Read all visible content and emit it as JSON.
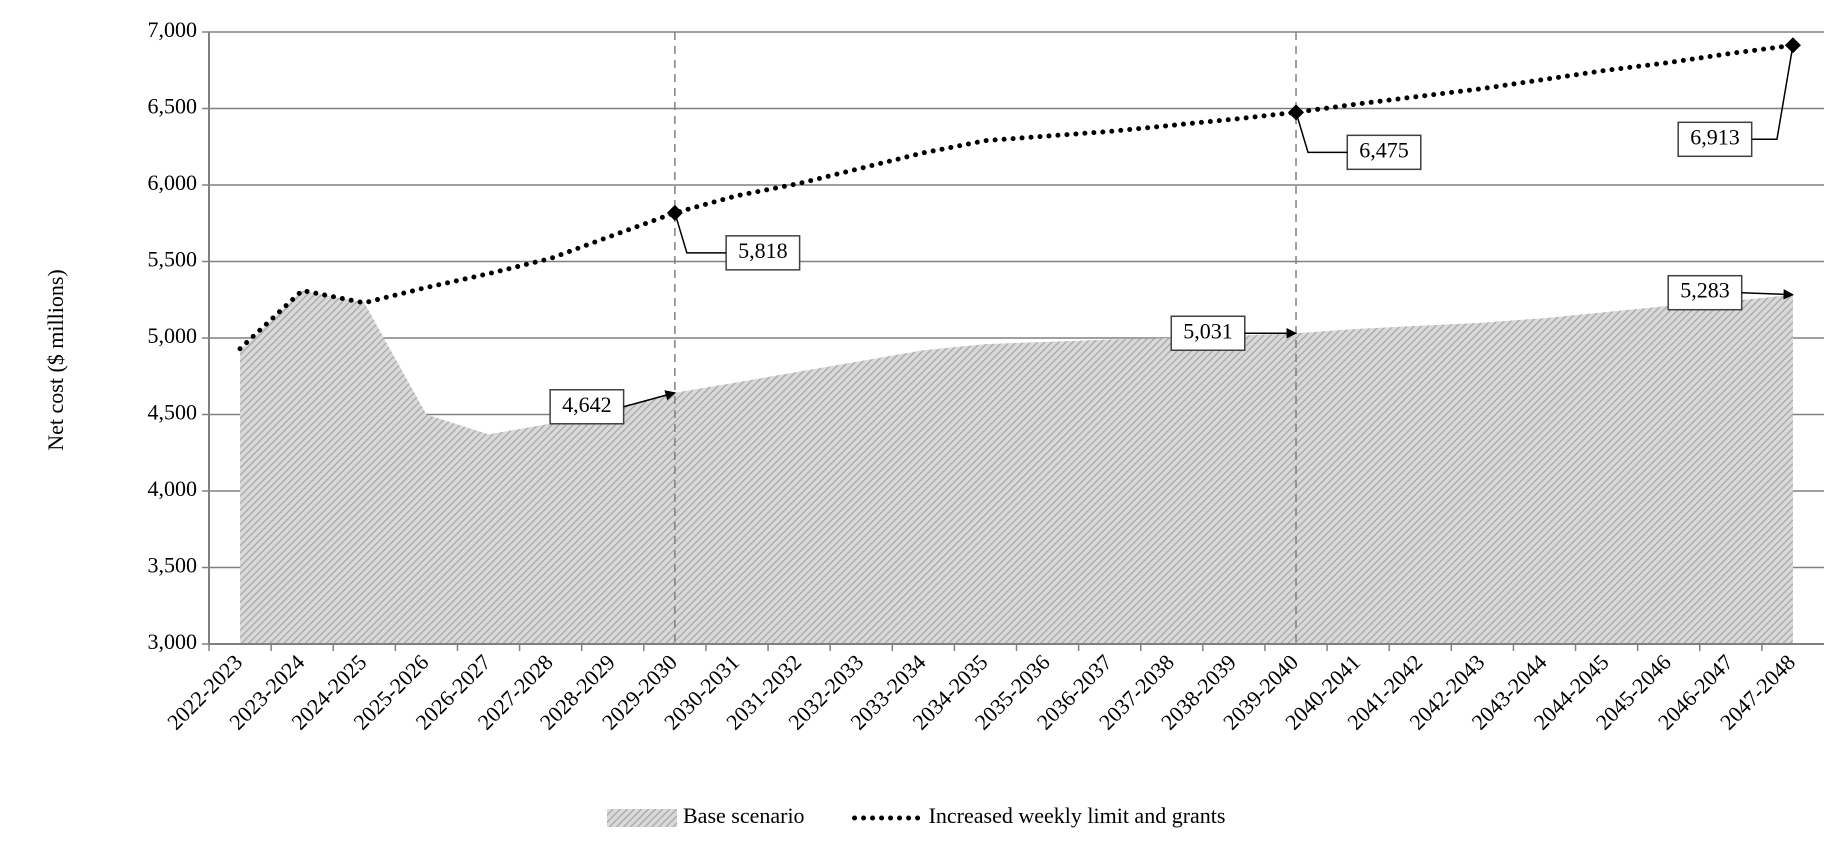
{
  "chart_data": {
    "type": "area_line",
    "y_label": "Net cost ($ millions)",
    "categories": [
      "2022-2023",
      "2023-2024",
      "2024-2025",
      "2025-2026",
      "2026-2027",
      "2027-2028",
      "2028-2029",
      "2029-2030",
      "2030-2031",
      "2031-2032",
      "2032-2033",
      "2033-2034",
      "2034-2035",
      "2035-2036",
      "2036-2037",
      "2037-2038",
      "2038-2039",
      "2039-2040",
      "2040-2041",
      "2041-2042",
      "2042-2043",
      "2043-2044",
      "2044-2045",
      "2045-2046",
      "2046-2047",
      "2047-2048"
    ],
    "series": [
      {
        "name": "Base scenario",
        "kind": "area",
        "color": "#a6a6a6",
        "values": [
          4920,
          5310,
          5230,
          4500,
          4370,
          4440,
          4540,
          4642,
          4710,
          4780,
          4850,
          4920,
          4960,
          4975,
          4990,
          5000,
          5015,
          5031,
          5060,
          5080,
          5100,
          5130,
          5170,
          5210,
          5240,
          5283
        ],
        "value_labels": [
          null,
          null,
          null,
          null,
          null,
          null,
          null,
          "4,642",
          null,
          null,
          null,
          null,
          null,
          null,
          null,
          null,
          null,
          "5,031",
          null,
          null,
          null,
          null,
          null,
          null,
          null,
          "5,283"
        ]
      },
      {
        "name": "Increased weekly limit and grants",
        "kind": "line",
        "color": "#000000",
        "values": [
          4930,
          5310,
          5230,
          5330,
          5420,
          5520,
          5670,
          5818,
          5930,
          6010,
          6110,
          6210,
          6290,
          6320,
          6350,
          6390,
          6430,
          6475,
          6530,
          6580,
          6630,
          6690,
          6750,
          6800,
          6860,
          6913
        ],
        "value_labels": [
          null,
          null,
          null,
          null,
          null,
          null,
          null,
          "5,818",
          null,
          null,
          null,
          null,
          null,
          null,
          null,
          null,
          null,
          "6,475",
          null,
          null,
          null,
          null,
          null,
          null,
          null,
          "6,913"
        ]
      }
    ],
    "ylim": [
      3000,
      7000
    ],
    "yticks": [
      {
        "value": 3000,
        "label": "3,000"
      },
      {
        "value": 3500,
        "label": "3,500"
      },
      {
        "value": 4000,
        "label": "4,000"
      },
      {
        "value": 4500,
        "label": "4,500"
      },
      {
        "value": 5000,
        "label": "5,000"
      },
      {
        "value": 5500,
        "label": "5,500"
      },
      {
        "value": 6000,
        "label": "6,000"
      },
      {
        "value": 6500,
        "label": "6,500"
      },
      {
        "value": 7000,
        "label": "7,000"
      }
    ],
    "grid": true,
    "legend": "bottom"
  }
}
